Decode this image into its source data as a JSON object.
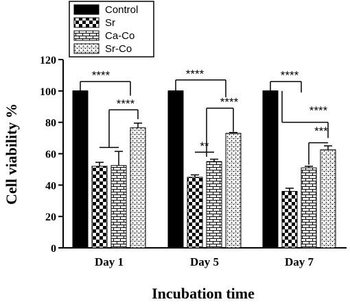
{
  "chart_data": {
    "type": "bar",
    "xlabel": "Incubation time",
    "ylabel": "Cell viability %",
    "ylim": [
      0,
      120
    ],
    "yticks": [
      0,
      20,
      40,
      60,
      80,
      100,
      120
    ],
    "categories": [
      "Day 1",
      "Day 5",
      "Day 7"
    ],
    "legend_position": "top-left",
    "error_bars": true,
    "series": [
      {
        "name": "Control",
        "pattern": "solid",
        "color": "#000000",
        "values": [
          100,
          100,
          100
        ],
        "errors": [
          0,
          0,
          0
        ]
      },
      {
        "name": "Sr",
        "pattern": "checkerboard",
        "color": "#000000",
        "values": [
          52,
          45,
          36
        ],
        "errors": [
          2.5,
          1.5,
          2
        ]
      },
      {
        "name": "Ca-Co",
        "pattern": "brick",
        "color": "#000000",
        "values": [
          52.5,
          55,
          51
        ],
        "errors": [
          9,
          1.5,
          1
        ]
      },
      {
        "name": "Sr-Co",
        "pattern": "dotted",
        "color": "#000000",
        "values": [
          76.5,
          73,
          62.5
        ],
        "errors": [
          3,
          0.5,
          2.5
        ]
      }
    ],
    "significance": [
      {
        "group": 0,
        "label": "****",
        "from": [
          0
        ],
        "to": [
          3
        ]
      },
      {
        "group": 0,
        "label": "****",
        "from": [
          1,
          2
        ],
        "to": [
          3
        ]
      },
      {
        "group": 1,
        "label": "****",
        "from": [
          0
        ],
        "to": [
          3
        ]
      },
      {
        "group": 1,
        "label": "****",
        "from": [
          2
        ],
        "to": [
          3
        ]
      },
      {
        "group": 1,
        "label": "**",
        "from": [
          1
        ],
        "to": [
          2
        ]
      },
      {
        "group": 2,
        "label": "****",
        "from": [
          0
        ],
        "to": [
          3
        ]
      },
      {
        "group": 2,
        "label": "****",
        "from": [
          1
        ],
        "to": [
          2
        ]
      },
      {
        "group": 2,
        "label": "***",
        "from": [
          2
        ],
        "to": [
          3
        ]
      }
    ]
  }
}
